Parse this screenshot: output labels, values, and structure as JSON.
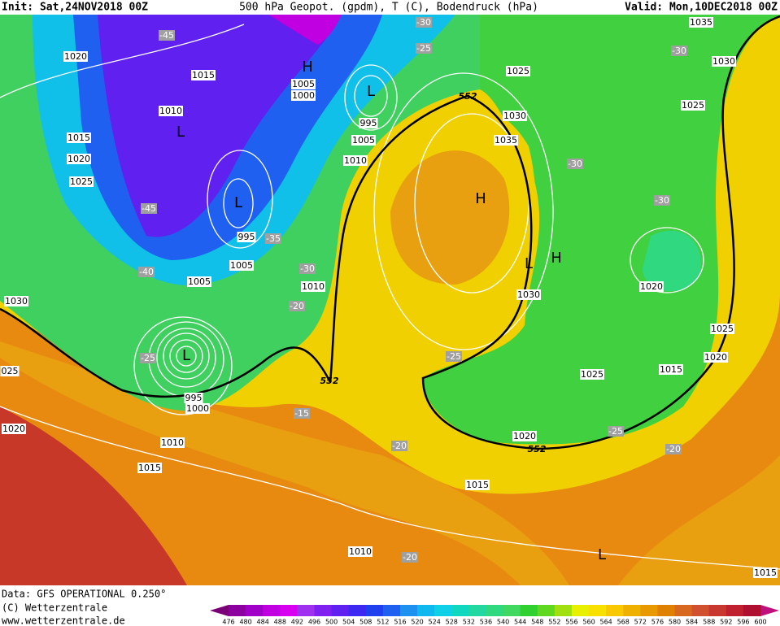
{
  "header": {
    "init": "Init: Sat,24NOV2018 00Z",
    "title": "500 hPa Geopot. (gpdm), T (C), Bodendruck (hPa)",
    "valid": "Valid: Mon,10DEC2018 00Z"
  },
  "footer": {
    "data": "Data: GFS OPERATIONAL 0.250°",
    "copyright": "(C) Wetterzentrale",
    "url": "www.wetterzentrale.de"
  },
  "map": {
    "isobar_labels": [
      "1020",
      "1015",
      "1005",
      "1000",
      "1010",
      "1015",
      "1020",
      "1025",
      "995",
      "1005",
      "1005",
      "1010",
      "1030",
      "025",
      "1020",
      "1010",
      "1015",
      "995",
      "1000",
      "1005",
      "1010",
      "995",
      "1025",
      "1030",
      "1035",
      "1030",
      "1025",
      "1020",
      "1015",
      "1010",
      "1035",
      "1030",
      "1025",
      "1020",
      "1025",
      "1020",
      "1015",
      "1015"
    ],
    "temperature_labels": [
      "-45",
      "-30",
      "-25",
      "-45",
      "-35",
      "-40",
      "-30",
      "-20",
      "-25",
      "-15",
      "-20",
      "-25",
      "-30",
      "-30",
      "-30",
      "-25",
      "-20",
      "-20"
    ],
    "contour_labels": [
      "552",
      "552",
      "552"
    ],
    "pressure_centers": [
      "H",
      "L",
      "L",
      "L",
      "L",
      "H",
      "L",
      "H",
      "L"
    ]
  },
  "colorbar": {
    "ticks": [
      476,
      480,
      484,
      488,
      492,
      496,
      500,
      504,
      508,
      512,
      516,
      520,
      524,
      528,
      532,
      536,
      540,
      544,
      548,
      552,
      556,
      560,
      564,
      568,
      572,
      576,
      580,
      584,
      588,
      592,
      596,
      600
    ],
    "swatch_colors": [
      "#8c00a0",
      "#a000c8",
      "#c000e0",
      "#d800f0",
      "#a030f0",
      "#8020f0",
      "#6020f0",
      "#3c28f0",
      "#2040f0",
      "#2060f0",
      "#1e90f0",
      "#10b8f0",
      "#10d0e8",
      "#10d8c0",
      "#20d8a0",
      "#30d880",
      "#40d860",
      "#30d030",
      "#60d820",
      "#a0e010",
      "#e8f000",
      "#f8e000",
      "#f8c800",
      "#f0b000",
      "#e89800",
      "#e08000",
      "#d86820",
      "#d05030",
      "#c83830",
      "#c02030",
      "#b01030"
    ]
  }
}
